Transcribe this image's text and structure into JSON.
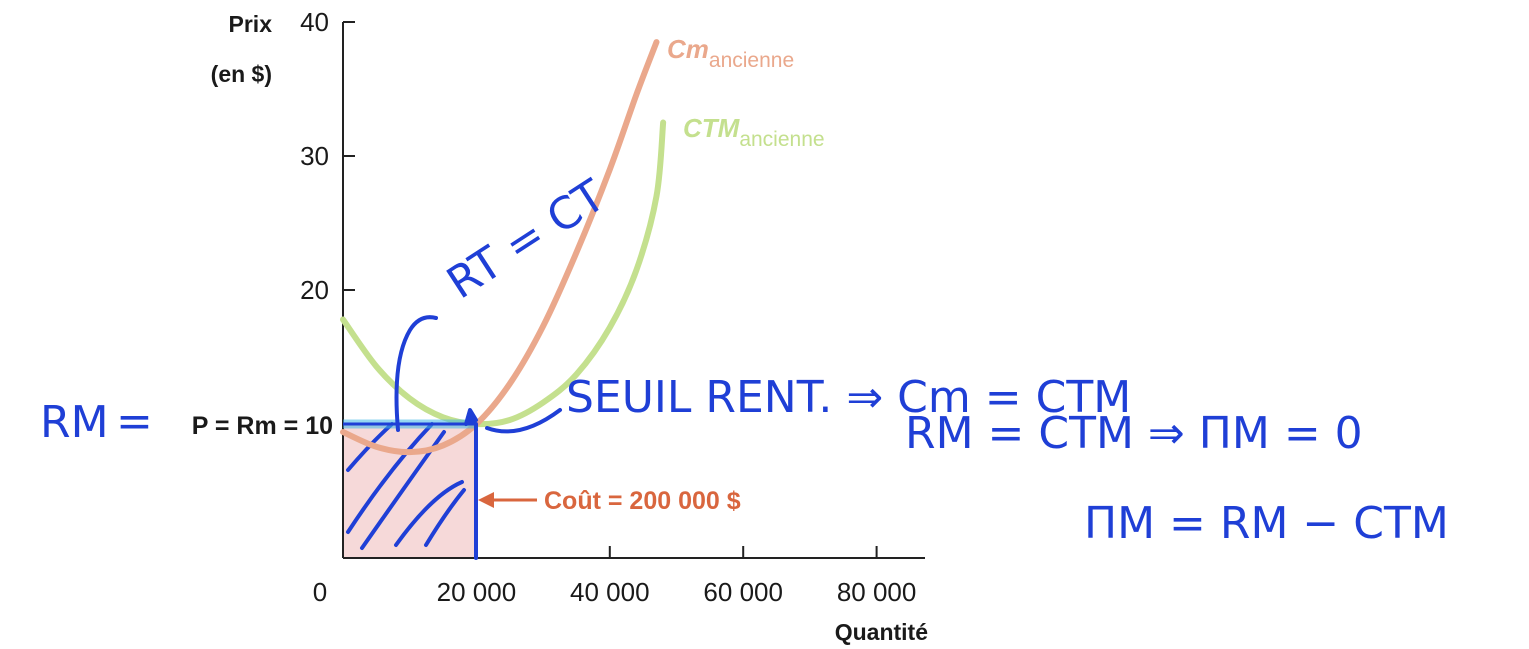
{
  "chart_data": {
    "type": "line",
    "x_axis": {
      "label": "Quantité",
      "range": [
        0,
        87000
      ],
      "ticks": [
        20000,
        40000,
        60000,
        80000
      ],
      "tick_labels": [
        "20 000",
        "40 000",
        "60 000",
        "80 000"
      ],
      "origin_label": "0"
    },
    "y_axis": {
      "label_line1": "Prix",
      "label_line2": "(en $)",
      "range": [
        0,
        40
      ],
      "ticks": [
        20,
        30,
        40
      ],
      "tick_labels": [
        "20",
        "30",
        "40"
      ]
    },
    "price_line": {
      "label": "P = Rm = 10",
      "value": 10,
      "color": "#3fb6e6"
    },
    "series": [
      {
        "name_main": "Cm",
        "name_sub": "ancienne",
        "color": "#eaa88c",
        "points": [
          [
            0,
            9.4
          ],
          [
            5000,
            8.3
          ],
          [
            10000,
            7.9
          ],
          [
            15000,
            8.4
          ],
          [
            20000,
            10.0
          ],
          [
            25000,
            13.0
          ],
          [
            30000,
            17.3
          ],
          [
            35000,
            22.8
          ],
          [
            40000,
            29.0
          ],
          [
            44000,
            34.6
          ],
          [
            47000,
            38.5
          ]
        ]
      },
      {
        "name_main": "CTM",
        "name_sub": "ancienne",
        "color": "#c4e08e",
        "points": [
          [
            0,
            17.8
          ],
          [
            5000,
            14.3
          ],
          [
            10000,
            11.9
          ],
          [
            15000,
            10.5
          ],
          [
            20000,
            10.0
          ],
          [
            25000,
            10.3
          ],
          [
            30000,
            11.6
          ],
          [
            35000,
            13.7
          ],
          [
            40000,
            17.2
          ],
          [
            44000,
            21.5
          ],
          [
            47000,
            27.0
          ],
          [
            48000,
            32.5
          ]
        ]
      }
    ],
    "cost_area": {
      "label": "Coût = 200 000 $",
      "x_range": [
        0,
        20000
      ],
      "y_range": [
        0,
        10
      ],
      "fill": "#f6d9d9",
      "text_color": "#d9663e"
    },
    "annotations_handwritten": {
      "color": "#1f3fd6",
      "left_label": "RM",
      "equals_sign": "=",
      "diagonal_label": "RT = CT",
      "line1": "SEUIL RENT. ⇒ Cm = CTM",
      "line2": "RM = CTM ⇒ ΠM = 0",
      "line3": "ΠM = RM − CTM"
    },
    "grid": false
  }
}
